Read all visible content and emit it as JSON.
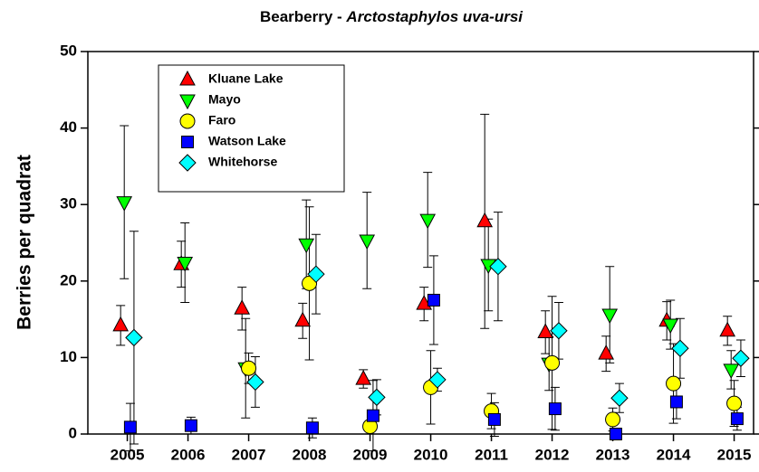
{
  "chart_data": {
    "type": "scatter",
    "title": "Bearberry -",
    "title_species": "Arctostaphylos uva-ursi",
    "y_label": "Berries per quadrat",
    "x": [
      2005,
      2006,
      2007,
      2008,
      2009,
      2010,
      2011,
      2012,
      2013,
      2014,
      2015
    ],
    "xlim": [
      2004.35,
      2015.32
    ],
    "xticks": [
      2005,
      2006,
      2007,
      2008,
      2009,
      2010,
      2011,
      2012,
      2013,
      2014,
      2015
    ],
    "ylim": [
      0,
      50
    ],
    "yticks": [
      0,
      10,
      20,
      30,
      40,
      50
    ],
    "legend": "upper left",
    "series": [
      {
        "name": "Kluane Lake",
        "color": "#ff0000",
        "marker": "triangle-up",
        "values": [
          14.2,
          22.2,
          16.4,
          14.8,
          7.2,
          17.0,
          27.8,
          13.3,
          10.5,
          14.8,
          13.5
        ],
        "errors": [
          2.6,
          3.0,
          2.8,
          2.3,
          1.2,
          2.2,
          14.0,
          2.8,
          2.3,
          2.5,
          1.9
        ]
      },
      {
        "name": "Mayo",
        "color": "#00ff00",
        "marker": "triangle-down",
        "values": [
          30.3,
          22.4,
          8.6,
          24.8,
          25.3,
          28.0,
          22.1,
          9.2,
          15.6,
          14.3,
          8.4
        ],
        "errors": [
          10.0,
          5.2,
          6.5,
          5.8,
          6.3,
          6.2,
          6.0,
          3.5,
          6.3,
          3.2,
          2.5
        ]
      },
      {
        "name": "Faro",
        "color": "#ffff00",
        "marker": "circle",
        "values": [
          null,
          null,
          8.6,
          19.7,
          1.0,
          6.1,
          3.0,
          9.3,
          1.9,
          6.6,
          4.0
        ],
        "errors": [
          null,
          null,
          2.0,
          10.0,
          0.5,
          4.8,
          2.3,
          8.7,
          1.5,
          5.2,
          3.0
        ]
      },
      {
        "name": "Watson Lake",
        "color": "#0000ff",
        "marker": "square",
        "values": [
          0.9,
          1.1,
          null,
          0.8,
          2.4,
          17.5,
          1.9,
          3.3,
          0.0,
          4.2,
          2.0
        ],
        "errors": [
          3.1,
          1.1,
          null,
          1.3,
          4.6,
          5.8,
          2.2,
          2.8,
          0.2,
          2.2,
          1.5
        ]
      },
      {
        "name": "Whitehorse",
        "color": "#00ffff",
        "marker": "diamond",
        "values": [
          12.6,
          null,
          6.8,
          20.9,
          4.8,
          7.1,
          21.9,
          13.5,
          4.7,
          11.2,
          9.9
        ],
        "errors": [
          13.9,
          null,
          3.3,
          5.2,
          2.3,
          1.5,
          7.1,
          3.7,
          1.9,
          3.9,
          2.4
        ]
      }
    ]
  }
}
